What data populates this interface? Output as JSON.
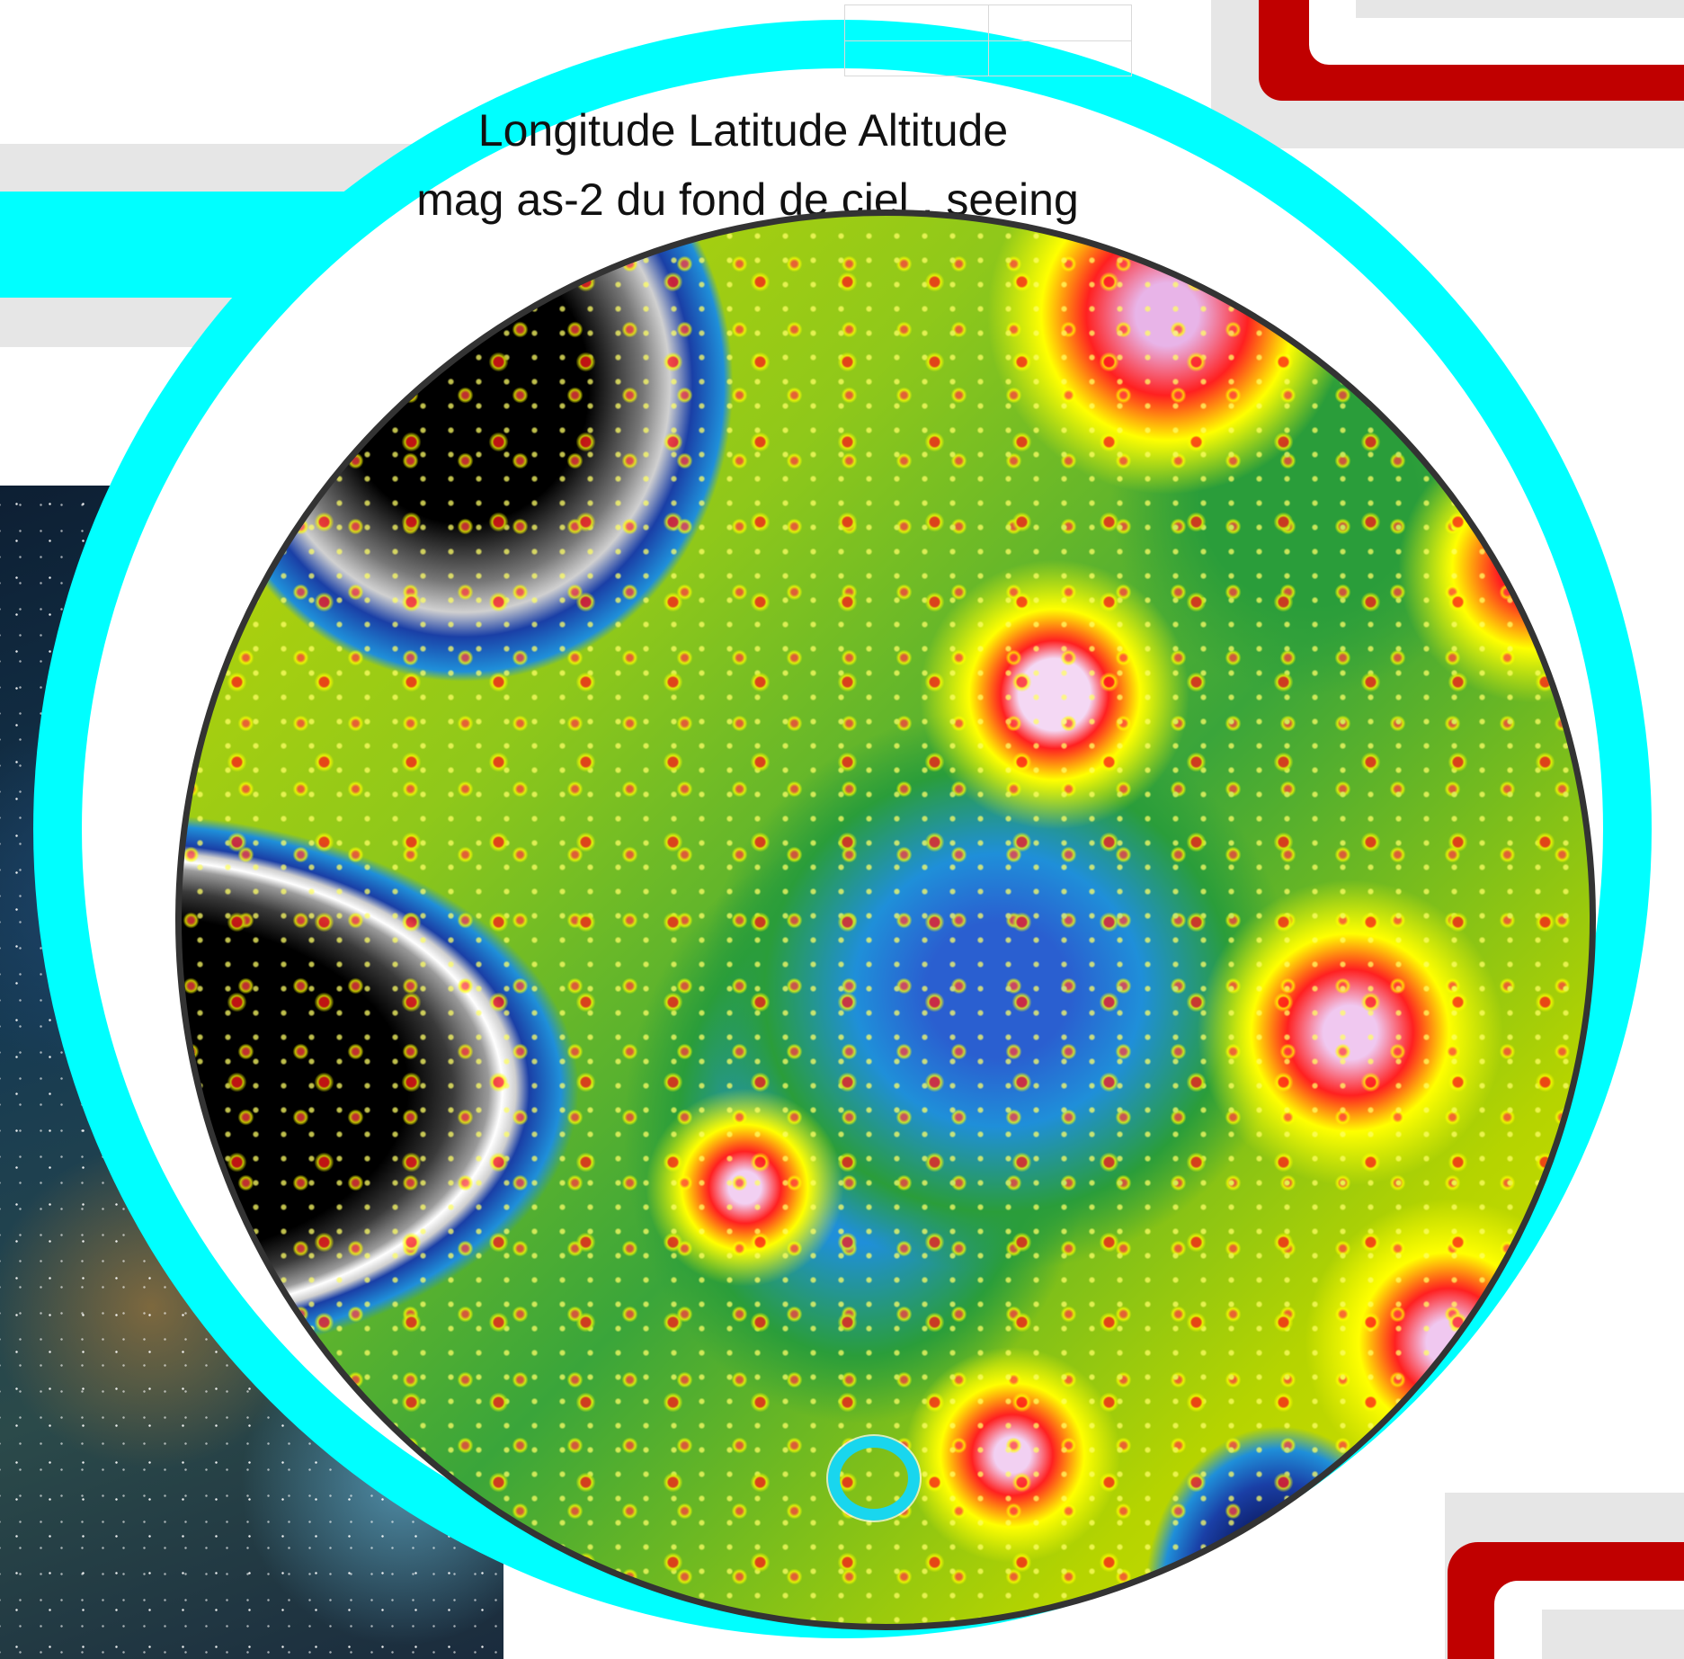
{
  "header": {
    "line1": "Longitude Latitude Altitude",
    "line2": "mag as-2 du fond de ciel , seeing"
  },
  "map": {
    "description_icon": "light-pollution-map",
    "marker": "location-marker"
  },
  "colors": {
    "ring": "#00ffff",
    "accent_red": "#c00000",
    "panel_gray": "#e6e6e6",
    "marker": "#19d6ee"
  }
}
